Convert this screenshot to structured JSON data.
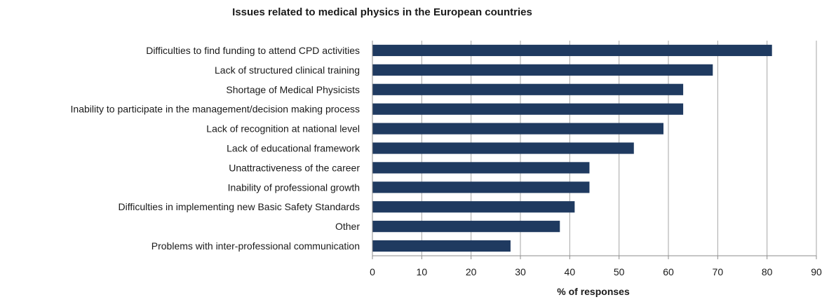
{
  "chart_data": {
    "type": "bar",
    "orientation": "horizontal",
    "title": "Issues related to medical physics in the European countries",
    "xlabel": "% of responses",
    "ylabel": "",
    "xlim": [
      0,
      90
    ],
    "xticks": [
      0,
      10,
      20,
      30,
      40,
      50,
      60,
      70,
      80,
      90
    ],
    "grid": "vertical",
    "legend": "none",
    "bar_color": "#1f3a60",
    "categories": [
      "Difficulties to find funding to attend CPD activities",
      "Lack of structured clinical training",
      "Shortage of Medical Physicists",
      "Inability to participate in the management/decision making process",
      "Lack of recognition at national level",
      "Lack of educational framework",
      "Unattractiveness of the career",
      "Inability of professional growth",
      "Difficulties in implementing new Basic Safety Standards",
      "Other",
      "Problems with inter-professional communication"
    ],
    "values": [
      81,
      69,
      63,
      63,
      59,
      53,
      44,
      44,
      41,
      38,
      28
    ]
  }
}
